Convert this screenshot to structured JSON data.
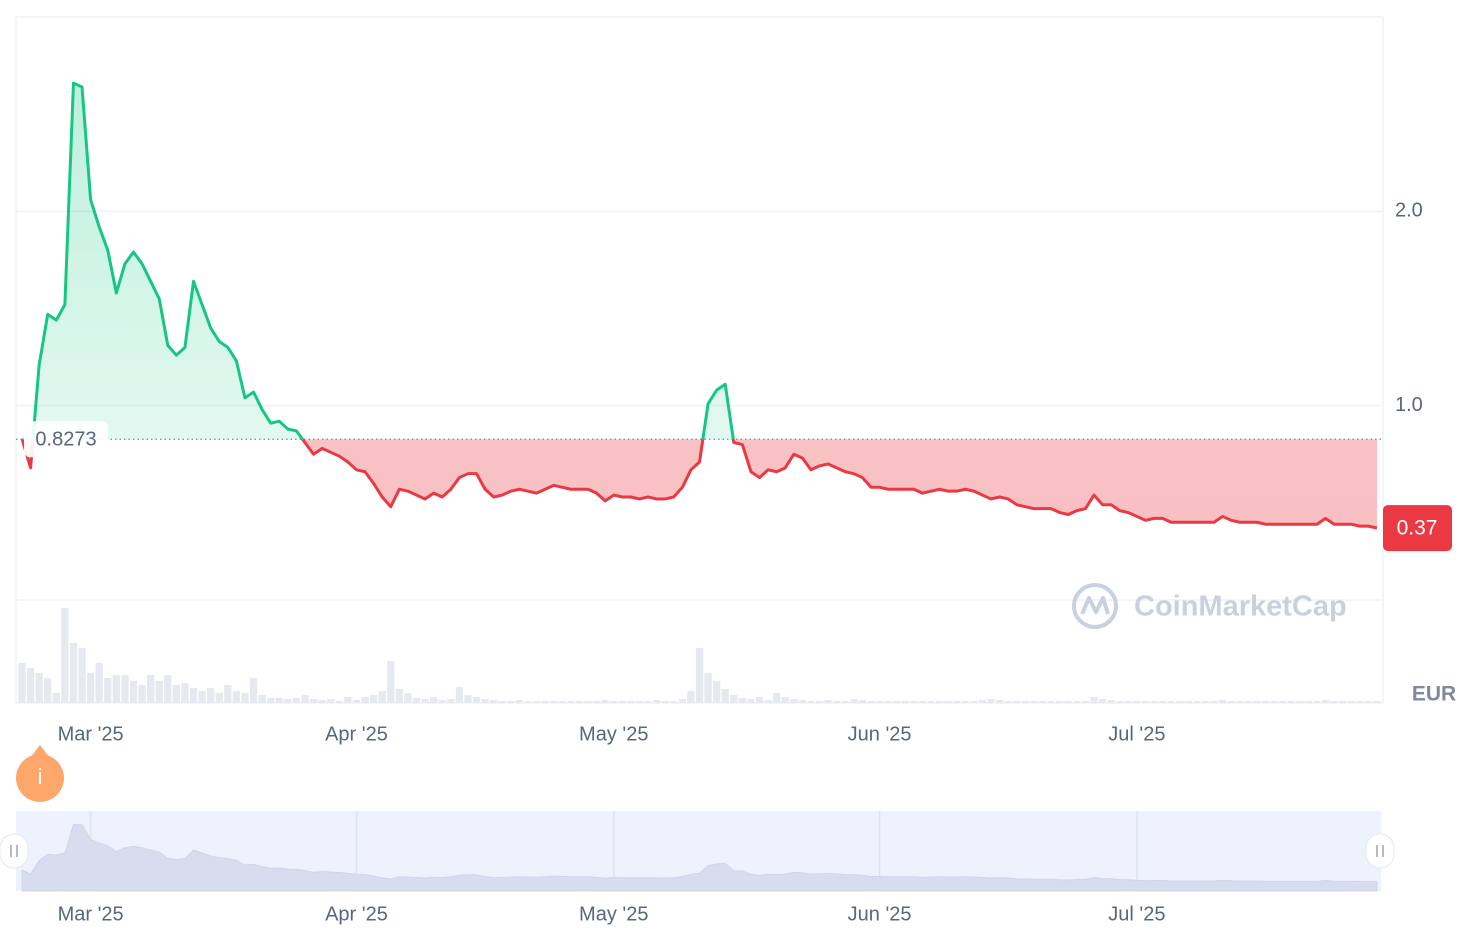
{
  "chart_data": {
    "type": "line",
    "categories": [
      null,
      null,
      null,
      null,
      null,
      null,
      null,
      null,
      "Mar '25",
      null,
      null,
      null,
      null,
      null,
      null,
      null,
      null,
      null,
      null,
      null,
      null,
      null,
      null,
      null,
      null,
      null,
      null,
      null,
      null,
      null,
      null,
      null,
      null,
      null,
      null,
      null,
      null,
      null,
      null,
      "Apr '25",
      null,
      null,
      null,
      null,
      null,
      null,
      null,
      null,
      null,
      null,
      null,
      null,
      null,
      null,
      null,
      null,
      null,
      null,
      null,
      null,
      null,
      null,
      null,
      null,
      null,
      null,
      null,
      null,
      null,
      "May '25",
      null,
      null,
      null,
      null,
      null,
      null,
      null,
      null,
      null,
      null,
      null,
      null,
      null,
      null,
      null,
      null,
      null,
      null,
      null,
      null,
      null,
      null,
      null,
      null,
      null,
      null,
      null,
      null,
      null,
      null,
      "Jun '25",
      null,
      null,
      null,
      null,
      null,
      null,
      null,
      null,
      null,
      null,
      null,
      null,
      null,
      null,
      null,
      null,
      null,
      null,
      null,
      null,
      null,
      null,
      null,
      null,
      null,
      null,
      null,
      null,
      null,
      "Jul '25",
      null,
      null,
      null,
      null,
      null,
      null,
      null,
      null,
      null,
      null,
      null,
      null,
      null,
      null,
      null,
      null,
      null,
      null,
      null,
      null,
      null,
      null,
      null,
      null,
      null,
      null,
      null,
      null
    ],
    "values": [
      0.83,
      0.68,
      1.21,
      1.47,
      1.44,
      1.52,
      2.66,
      2.64,
      2.06,
      1.92,
      1.8,
      1.58,
      1.73,
      1.79,
      1.73,
      1.64,
      1.55,
      1.31,
      1.26,
      1.3,
      1.64,
      1.52,
      1.4,
      1.33,
      1.3,
      1.23,
      1.04,
      1.07,
      0.98,
      0.91,
      0.92,
      0.88,
      0.87,
      0.81,
      0.75,
      0.78,
      0.76,
      0.74,
      0.71,
      0.67,
      0.66,
      0.6,
      0.53,
      0.48,
      0.57,
      0.56,
      0.54,
      0.52,
      0.55,
      0.53,
      0.57,
      0.63,
      0.65,
      0.65,
      0.57,
      0.53,
      0.54,
      0.56,
      0.57,
      0.56,
      0.55,
      0.57,
      0.59,
      0.58,
      0.57,
      0.57,
      0.57,
      0.55,
      0.51,
      0.54,
      0.53,
      0.53,
      0.52,
      0.53,
      0.52,
      0.52,
      0.53,
      0.58,
      0.67,
      0.71,
      1.01,
      1.08,
      1.11,
      0.81,
      0.8,
      0.66,
      0.63,
      0.67,
      0.66,
      0.68,
      0.75,
      0.73,
      0.67,
      0.69,
      0.7,
      0.68,
      0.66,
      0.65,
      0.63,
      0.58,
      0.58,
      0.57,
      0.57,
      0.57,
      0.57,
      0.55,
      0.56,
      0.57,
      0.56,
      0.56,
      0.57,
      0.56,
      0.54,
      0.52,
      0.53,
      0.52,
      0.49,
      0.48,
      0.47,
      0.47,
      0.47,
      0.45,
      0.44,
      0.46,
      0.47,
      0.54,
      0.49,
      0.49,
      0.46,
      0.45,
      0.43,
      0.41,
      0.42,
      0.42,
      0.4,
      0.4,
      0.4,
      0.4,
      0.4,
      0.4,
      0.43,
      0.41,
      0.4,
      0.4,
      0.4,
      0.39,
      0.39,
      0.39,
      0.39,
      0.39,
      0.39,
      0.39,
      0.42,
      0.39,
      0.39,
      0.39,
      0.38,
      0.38,
      0.37
    ],
    "volume": [
      40,
      35,
      30,
      25,
      10,
      95,
      60,
      55,
      30,
      40,
      25,
      28,
      28,
      22,
      18,
      28,
      22,
      28,
      18,
      20,
      15,
      12,
      15,
      10,
      18,
      12,
      10,
      25,
      8,
      5,
      5,
      4,
      5,
      8,
      4,
      3,
      4,
      2,
      6,
      3,
      6,
      8,
      12,
      42,
      14,
      10,
      5,
      4,
      6,
      3,
      4,
      16,
      8,
      6,
      4,
      3,
      2,
      2,
      3,
      2,
      2,
      2,
      2,
      2,
      2,
      2,
      2,
      2,
      3,
      2,
      2,
      2,
      2,
      2,
      3,
      2,
      2,
      4,
      12,
      55,
      30,
      22,
      14,
      8,
      5,
      4,
      6,
      3,
      10,
      6,
      4,
      3,
      2,
      2,
      3,
      2,
      2,
      4,
      3,
      2,
      2,
      2,
      2,
      2,
      2,
      2,
      2,
      2,
      2,
      2,
      2,
      2,
      3,
      4,
      3,
      2,
      2,
      2,
      2,
      2,
      2,
      2,
      2,
      2,
      2,
      6,
      4,
      3,
      2,
      2,
      2,
      2,
      2,
      2,
      2,
      2,
      2,
      2,
      2,
      2,
      3,
      2,
      2,
      2,
      2,
      2,
      2,
      2,
      2,
      2,
      2,
      2,
      3,
      2,
      2,
      2,
      2,
      2,
      2
    ],
    "baseline": 0.8273,
    "ylim": [
      0,
      3
    ],
    "yticks": [
      {
        "value": 1,
        "label": "1.0"
      },
      {
        "value": 2,
        "label": "2.0"
      }
    ],
    "grid": true,
    "up_color": "#16c784",
    "down_color": "#ea3943",
    "currency": "EUR",
    "watermark": "CoinMarketCap",
    "info_icon": "i"
  }
}
